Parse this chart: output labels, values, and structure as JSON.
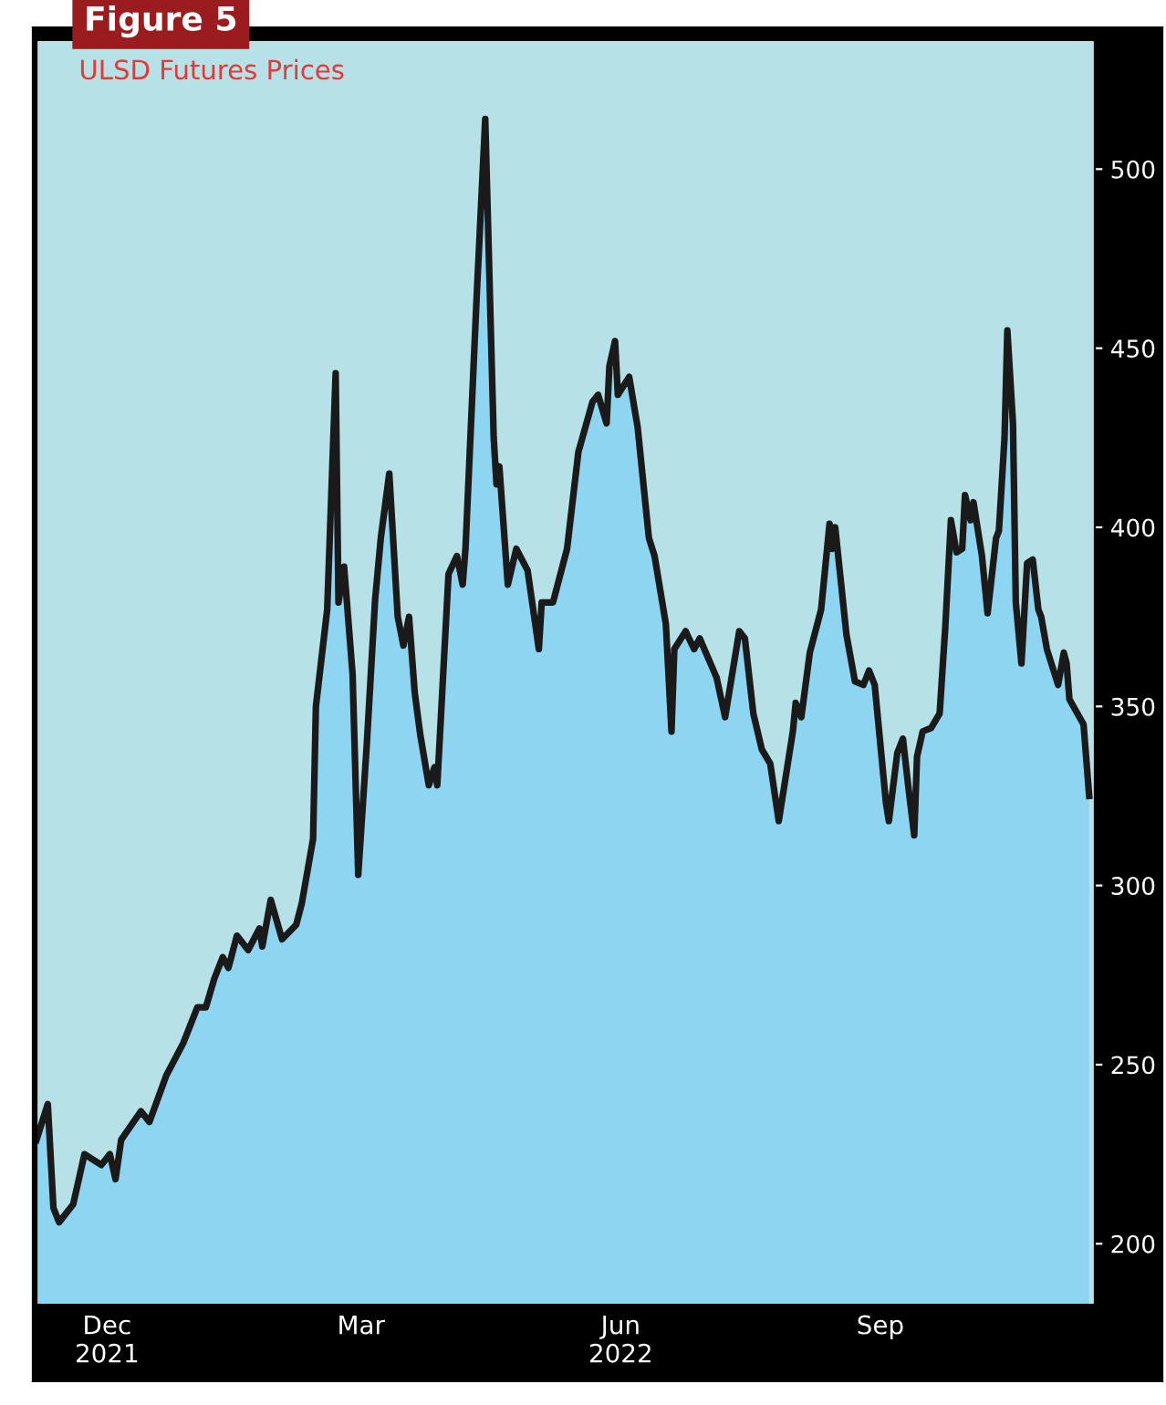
{
  "chart_data": {
    "type": "area",
    "title": "Figure 5",
    "subtitle": "ULSD Futures Prices",
    "x": [
      "2021-11-20",
      "2021-11-24",
      "2021-11-26",
      "2021-11-28",
      "2021-12-03",
      "2021-12-07",
      "2021-12-13",
      "2021-12-16",
      "2021-12-18",
      "2021-12-20",
      "2021-12-27",
      "2021-12-30",
      "2022-01-05",
      "2022-01-11",
      "2022-01-16",
      "2022-01-19",
      "2022-01-22",
      "2022-01-25",
      "2022-01-27",
      "2022-01-30",
      "2022-02-03",
      "2022-02-07",
      "2022-02-08",
      "2022-02-11",
      "2022-02-15",
      "2022-02-20",
      "2022-02-22",
      "2022-02-26",
      "2022-02-27",
      "2022-03-03",
      "2022-03-06",
      "2022-03-07",
      "2022-03-09",
      "2022-03-12",
      "2022-03-14",
      "2022-03-17",
      "2022-03-20",
      "2022-03-22",
      "2022-03-25",
      "2022-03-28",
      "2022-03-30",
      "2022-04-01",
      "2022-04-03",
      "2022-04-05",
      "2022-04-08",
      "2022-04-10",
      "2022-04-11",
      "2022-04-15",
      "2022-04-18",
      "2022-04-20",
      "2022-04-21",
      "2022-04-25",
      "2022-04-28",
      "2022-05-01",
      "2022-05-02",
      "2022-05-03",
      "2022-05-06",
      "2022-05-09",
      "2022-05-13",
      "2022-05-17",
      "2022-05-18",
      "2022-05-22",
      "2022-05-27",
      "2022-05-31",
      "2022-06-05",
      "2022-06-07",
      "2022-06-10",
      "2022-06-11",
      "2022-06-13",
      "2022-06-14",
      "2022-06-18",
      "2022-06-21",
      "2022-06-25",
      "2022-06-27",
      "2022-07-01",
      "2022-07-03",
      "2022-07-04",
      "2022-07-08",
      "2022-07-11",
      "2022-07-13",
      "2022-07-19",
      "2022-07-22",
      "2022-07-27",
      "2022-07-29",
      "2022-08-01",
      "2022-08-04",
      "2022-08-07",
      "2022-08-10",
      "2022-08-15",
      "2022-08-16",
      "2022-08-18",
      "2022-08-21",
      "2022-08-25",
      "2022-08-28",
      "2022-08-29",
      "2022-08-30",
      "2022-09-03",
      "2022-09-06",
      "2022-09-09",
      "2022-09-11",
      "2022-09-13",
      "2022-09-17",
      "2022-09-18",
      "2022-09-21",
      "2022-09-23",
      "2022-09-25",
      "2022-09-27",
      "2022-09-28",
      "2022-09-30",
      "2022-10-03",
      "2022-10-06",
      "2022-10-08",
      "2022-10-10",
      "2022-10-12",
      "2022-10-14",
      "2022-10-15",
      "2022-10-17",
      "2022-10-18",
      "2022-10-21",
      "2022-10-23",
      "2022-10-26",
      "2022-10-27",
      "2022-10-29",
      "2022-10-30",
      "2022-11-01",
      "2022-11-02",
      "2022-11-04",
      "2022-11-06",
      "2022-11-08",
      "2022-11-10",
      "2022-11-11",
      "2022-11-13",
      "2022-11-17",
      "2022-11-19",
      "2022-11-20",
      "2022-11-21",
      "2022-11-26",
      "2022-11-28"
    ],
    "series": [
      {
        "color": "#8dd5f0",
        "values": [
          229,
          239,
          210,
          206,
          211,
          225,
          222,
          225,
          218,
          229,
          237,
          234,
          247,
          256,
          266,
          266,
          274,
          280,
          277,
          286,
          282,
          288,
          283,
          296,
          285,
          289,
          295,
          313,
          350,
          377,
          443,
          379,
          389,
          359,
          303,
          339,
          380,
          397,
          415,
          375,
          367,
          375,
          354,
          342,
          328,
          333,
          328,
          387,
          392,
          384,
          394,
          465,
          514,
          425,
          412,
          417,
          384,
          394,
          388,
          366,
          379,
          379,
          394,
          421,
          435,
          437,
          429,
          445,
          452,
          437,
          442,
          428,
          397,
          392,
          373,
          343,
          366,
          371,
          366,
          369,
          358,
          347,
          371,
          369,
          348,
          338,
          334,
          318,
          343,
          351,
          347,
          365,
          377,
          401,
          394,
          400,
          370,
          357,
          356,
          360,
          356,
          323,
          318,
          337,
          341,
          327,
          314,
          336,
          343,
          344,
          348,
          372,
          402,
          393,
          394,
          409,
          402,
          407,
          392,
          376,
          397,
          399,
          425,
          455,
          429,
          379,
          362,
          390,
          391,
          377,
          375,
          366,
          356,
          365,
          362,
          352,
          345,
          325
        ]
      }
    ],
    "xlim": [
      "2021-11-20",
      "2022-11-30"
    ],
    "xticks": [
      {
        "value": "2021-12-15",
        "label": "Dec\n2021"
      },
      {
        "value": "2022-03-15",
        "label": "Mar"
      },
      {
        "value": "2022-06-15",
        "label": "Jun\n2022"
      },
      {
        "value": "2022-09-15",
        "label": "Sep"
      }
    ],
    "ylim": [
      183,
      536
    ],
    "yticks": [
      200,
      250,
      300,
      350,
      400,
      450,
      500
    ]
  }
}
